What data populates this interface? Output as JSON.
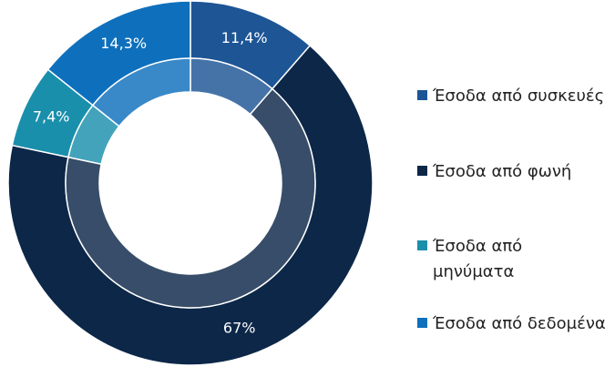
{
  "chart_data": {
    "type": "donut",
    "categories": [
      "Έσοδα από συσκευές",
      "Έσοδα από φωνή",
      "Έσοδα από μηνύματα",
      "Έσοδα από δεδομένα"
    ],
    "values": [
      11.4,
      67,
      7.4,
      14.3
    ],
    "value_labels": [
      "11,4%",
      "67%",
      "7,4%",
      "14,3%"
    ],
    "colors": [
      "#1d5595",
      "#0c2748",
      "#1a8fac",
      "#0e70bd"
    ],
    "legend": "right"
  }
}
